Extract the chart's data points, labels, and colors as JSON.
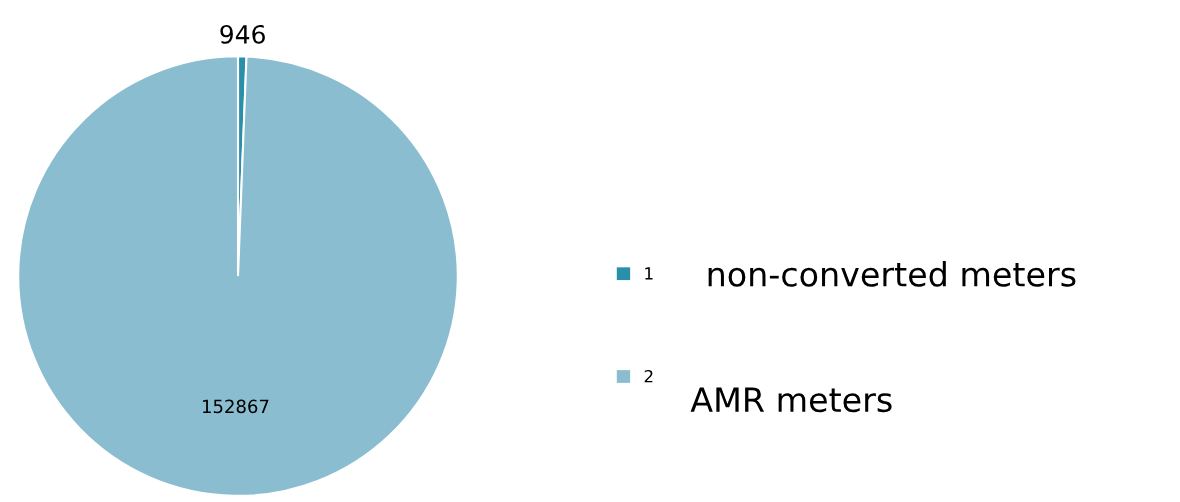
{
  "chart_data": {
    "type": "pie",
    "categories": [
      "1",
      "2"
    ],
    "values": [
      946,
      152867
    ],
    "colors": [
      "#2a8fa8",
      "#8bbdd0"
    ],
    "data_labels": true,
    "legend": "right",
    "annotations": [
      "non-converted meters",
      "AMR meters"
    ]
  }
}
